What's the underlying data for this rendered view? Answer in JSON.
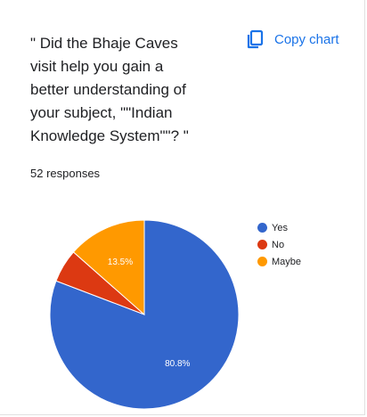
{
  "question": {
    "title": "\" Did the Bhaje Caves\nvisit help you gain a\nbetter understanding of\nyour subject, \"\"Indian\nKnowledge System\"\"? \"",
    "responses": "52 responses"
  },
  "toolbar": {
    "copy_label": "Copy chart",
    "copy_icon": "copy-icon"
  },
  "colors": {
    "yes": "#3366cc",
    "no": "#dc3912",
    "maybe": "#ff9900",
    "accent": "#1a73e8"
  },
  "chart_data": {
    "type": "pie",
    "categories": [
      "Yes",
      "No",
      "Maybe"
    ],
    "values": [
      80.8,
      5.7,
      13.5
    ],
    "data_labels": [
      "80.8%",
      "",
      "13.5%"
    ],
    "legend_position": "right"
  }
}
